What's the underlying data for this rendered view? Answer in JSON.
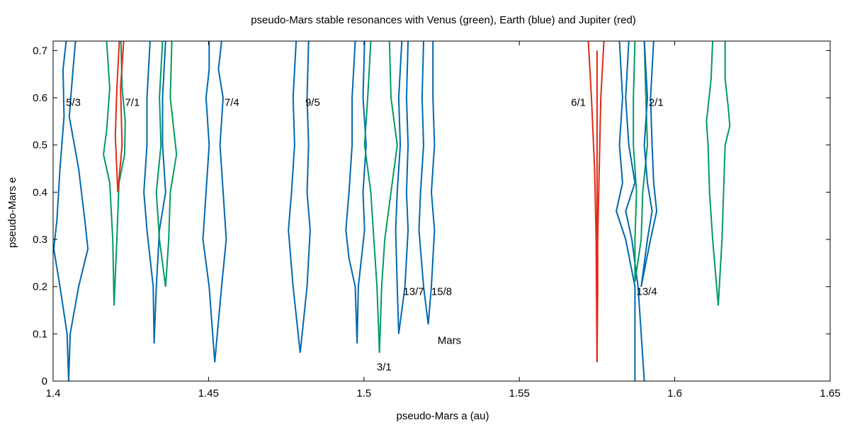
{
  "chart_data": {
    "type": "line",
    "title": "pseudo-Mars stable resonances with Venus (green), Earth (blue) and Jupiter (red)",
    "xlabel": "pseudo-Mars a (au)",
    "ylabel": "pseudo-Mars e",
    "xlim": [
      1.4,
      1.65
    ],
    "ylim": [
      0,
      0.72
    ],
    "xticks": [
      1.4,
      1.45,
      1.5,
      1.55,
      1.6,
      1.65
    ],
    "xtick_labels": [
      "1.4",
      "1.45",
      "1.5",
      "1.55",
      "1.6",
      "1.65"
    ],
    "yticks": [
      0,
      0.1,
      0.2,
      0.3,
      0.4,
      0.5,
      0.6,
      0.7
    ],
    "ytick_labels": [
      "0",
      "0.1",
      "0.2",
      "0.3",
      "0.4",
      "0.5",
      "0.6",
      "0.7"
    ],
    "grid": false,
    "colors": {
      "venus": "#009a63",
      "earth": "#0068b0",
      "jupiter": "#e02a14"
    },
    "series": [
      {
        "body": "earth",
        "points": [
          [
            1.4072,
            0.72
          ],
          [
            1.4064,
            0.66
          ],
          [
            1.4052,
            0.56
          ],
          [
            1.4082,
            0.45
          ],
          [
            1.4102,
            0.34
          ],
          [
            1.4112,
            0.28
          ],
          [
            1.4082,
            0.2
          ],
          [
            1.4055,
            0.1
          ],
          [
            1.405,
            0.0
          ]
        ]
      },
      {
        "body": "earth",
        "points": [
          [
            1.4042,
            0.72
          ],
          [
            1.4032,
            0.66
          ],
          [
            1.4035,
            0.56
          ],
          [
            1.4022,
            0.45
          ],
          [
            1.4012,
            0.34
          ],
          [
            1.4002,
            0.28
          ],
          [
            1.4022,
            0.2
          ],
          [
            1.4045,
            0.1
          ],
          [
            1.405,
            0.0
          ]
        ]
      },
      {
        "body": "venus",
        "points": [
          [
            1.4172,
            0.72
          ],
          [
            1.4182,
            0.62
          ],
          [
            1.4172,
            0.53
          ],
          [
            1.4162,
            0.48
          ],
          [
            1.4182,
            0.42
          ],
          [
            1.4192,
            0.3
          ],
          [
            1.4196,
            0.16
          ]
        ]
      },
      {
        "body": "venus",
        "points": [
          [
            1.4218,
            0.72
          ],
          [
            1.4222,
            0.62
          ],
          [
            1.4232,
            0.55
          ],
          [
            1.423,
            0.48
          ],
          [
            1.4212,
            0.42
          ],
          [
            1.4205,
            0.3
          ],
          [
            1.4196,
            0.16
          ]
        ]
      },
      {
        "body": "jupiter",
        "points": [
          [
            1.4213,
            0.72
          ],
          [
            1.4205,
            0.62
          ],
          [
            1.42,
            0.52
          ],
          [
            1.4208,
            0.4
          ]
        ]
      },
      {
        "body": "jupiter",
        "points": [
          [
            1.4227,
            0.72
          ],
          [
            1.4217,
            0.62
          ],
          [
            1.4222,
            0.5
          ],
          [
            1.4208,
            0.4
          ]
        ]
      },
      {
        "body": "earth",
        "points": [
          [
            1.4312,
            0.72
          ],
          [
            1.4302,
            0.6
          ],
          [
            1.4302,
            0.5
          ],
          [
            1.4292,
            0.4
          ],
          [
            1.4302,
            0.32
          ],
          [
            1.4322,
            0.2
          ],
          [
            1.4325,
            0.08
          ]
        ]
      },
      {
        "body": "earth",
        "points": [
          [
            1.4362,
            0.72
          ],
          [
            1.4352,
            0.6
          ],
          [
            1.4352,
            0.5
          ],
          [
            1.4362,
            0.4
          ],
          [
            1.4342,
            0.32
          ],
          [
            1.4332,
            0.2
          ],
          [
            1.4325,
            0.08
          ]
        ]
      },
      {
        "body": "venus",
        "points": [
          [
            1.4352,
            0.72
          ],
          [
            1.4342,
            0.6
          ],
          [
            1.4347,
            0.5
          ],
          [
            1.4332,
            0.4
          ],
          [
            1.4342,
            0.3
          ],
          [
            1.4362,
            0.2
          ]
        ]
      },
      {
        "body": "venus",
        "points": [
          [
            1.4382,
            0.72
          ],
          [
            1.4377,
            0.6
          ],
          [
            1.4397,
            0.48
          ],
          [
            1.4377,
            0.4
          ],
          [
            1.4372,
            0.3
          ],
          [
            1.4362,
            0.2
          ]
        ]
      },
      {
        "body": "earth",
        "points": [
          [
            1.4502,
            0.72
          ],
          [
            1.4502,
            0.66
          ],
          [
            1.4492,
            0.6
          ],
          [
            1.4502,
            0.5
          ],
          [
            1.4492,
            0.4
          ],
          [
            1.4482,
            0.3
          ],
          [
            1.4502,
            0.2
          ],
          [
            1.452,
            0.04
          ]
        ]
      },
      {
        "body": "earth",
        "points": [
          [
            1.4542,
            0.72
          ],
          [
            1.4532,
            0.66
          ],
          [
            1.4547,
            0.6
          ],
          [
            1.4537,
            0.5
          ],
          [
            1.4547,
            0.4
          ],
          [
            1.4557,
            0.3
          ],
          [
            1.4542,
            0.2
          ],
          [
            1.452,
            0.04
          ]
        ]
      },
      {
        "body": "earth",
        "points": [
          [
            1.4782,
            0.72
          ],
          [
            1.4772,
            0.6
          ],
          [
            1.4777,
            0.5
          ],
          [
            1.4767,
            0.4
          ],
          [
            1.4757,
            0.32
          ],
          [
            1.4772,
            0.2
          ],
          [
            1.4795,
            0.06
          ]
        ]
      },
      {
        "body": "earth",
        "points": [
          [
            1.4822,
            0.72
          ],
          [
            1.4817,
            0.6
          ],
          [
            1.4822,
            0.5
          ],
          [
            1.4817,
            0.4
          ],
          [
            1.4827,
            0.32
          ],
          [
            1.4817,
            0.2
          ],
          [
            1.4795,
            0.06
          ]
        ]
      },
      {
        "body": "earth",
        "points": [
          [
            1.4972,
            0.72
          ],
          [
            1.4962,
            0.6
          ],
          [
            1.4962,
            0.5
          ],
          [
            1.4952,
            0.4
          ],
          [
            1.4942,
            0.32
          ],
          [
            1.4952,
            0.26
          ],
          [
            1.4972,
            0.2
          ],
          [
            1.4978,
            0.08
          ]
        ]
      },
      {
        "body": "earth",
        "points": [
          [
            1.5002,
            0.72
          ],
          [
            1.4997,
            0.6
          ],
          [
            1.5007,
            0.5
          ],
          [
            1.4997,
            0.4
          ],
          [
            1.5002,
            0.32
          ],
          [
            1.4992,
            0.26
          ],
          [
            1.4982,
            0.2
          ],
          [
            1.4978,
            0.08
          ]
        ]
      },
      {
        "body": "venus",
        "points": [
          [
            1.5022,
            0.72
          ],
          [
            1.5012,
            0.6
          ],
          [
            1.5002,
            0.5
          ],
          [
            1.5022,
            0.4
          ],
          [
            1.5032,
            0.3
          ],
          [
            1.5042,
            0.2
          ],
          [
            1.505,
            0.06
          ]
        ]
      },
      {
        "body": "venus",
        "points": [
          [
            1.5082,
            0.72
          ],
          [
            1.5087,
            0.6
          ],
          [
            1.5107,
            0.5
          ],
          [
            1.5087,
            0.4
          ],
          [
            1.5067,
            0.3
          ],
          [
            1.5057,
            0.2
          ],
          [
            1.505,
            0.06
          ]
        ]
      },
      {
        "body": "earth",
        "points": [
          [
            1.5122,
            0.72
          ],
          [
            1.5112,
            0.6
          ],
          [
            1.5117,
            0.5
          ],
          [
            1.5107,
            0.4
          ],
          [
            1.5102,
            0.32
          ],
          [
            1.5107,
            0.2
          ],
          [
            1.5112,
            0.1
          ]
        ]
      },
      {
        "body": "earth",
        "points": [
          [
            1.5142,
            0.72
          ],
          [
            1.5137,
            0.6
          ],
          [
            1.5142,
            0.5
          ],
          [
            1.5137,
            0.4
          ],
          [
            1.5142,
            0.32
          ],
          [
            1.5132,
            0.2
          ],
          [
            1.5112,
            0.1
          ]
        ]
      },
      {
        "body": "earth",
        "points": [
          [
            1.5192,
            0.72
          ],
          [
            1.5187,
            0.6
          ],
          [
            1.5192,
            0.5
          ],
          [
            1.5182,
            0.4
          ],
          [
            1.5177,
            0.32
          ],
          [
            1.5192,
            0.2
          ],
          [
            1.5207,
            0.12
          ]
        ]
      },
      {
        "body": "earth",
        "points": [
          [
            1.5222,
            0.72
          ],
          [
            1.5222,
            0.6
          ],
          [
            1.5227,
            0.5
          ],
          [
            1.5217,
            0.4
          ],
          [
            1.5227,
            0.32
          ],
          [
            1.5217,
            0.2
          ],
          [
            1.5207,
            0.12
          ]
        ]
      },
      {
        "body": "jupiter",
        "points": [
          [
            1.5722,
            0.72
          ],
          [
            1.5732,
            0.6
          ],
          [
            1.5742,
            0.45
          ],
          [
            1.5747,
            0.3
          ],
          [
            1.5748,
            0.2
          ],
          [
            1.575,
            0.04
          ]
        ]
      },
      {
        "body": "jupiter",
        "points": [
          [
            1.5772,
            0.72
          ],
          [
            1.5762,
            0.6
          ],
          [
            1.5757,
            0.45
          ],
          [
            1.5752,
            0.3
          ],
          [
            1.5752,
            0.2
          ],
          [
            1.575,
            0.04
          ]
        ]
      },
      {
        "body": "earth",
        "points": [
          [
            1.5822,
            0.72
          ],
          [
            1.5832,
            0.6
          ],
          [
            1.5822,
            0.5
          ],
          [
            1.5832,
            0.42
          ],
          [
            1.5812,
            0.36
          ],
          [
            1.5842,
            0.3
          ],
          [
            1.5872,
            0.2
          ],
          [
            1.5872,
            0.0
          ]
        ]
      },
      {
        "body": "earth",
        "points": [
          [
            1.5852,
            0.72
          ],
          [
            1.5842,
            0.6
          ],
          [
            1.5852,
            0.5
          ],
          [
            1.5872,
            0.42
          ],
          [
            1.5842,
            0.36
          ],
          [
            1.5862,
            0.3
          ],
          [
            1.5882,
            0.2
          ],
          [
            1.5902,
            0.0
          ]
        ]
      },
      {
        "body": "venus",
        "points": [
          [
            1.5872,
            0.72
          ],
          [
            1.5867,
            0.6
          ],
          [
            1.5867,
            0.5
          ],
          [
            1.5877,
            0.4
          ],
          [
            1.5872,
            0.3
          ],
          [
            1.5872,
            0.21
          ]
        ]
      },
      {
        "body": "venus",
        "points": [
          [
            1.5902,
            0.72
          ],
          [
            1.5907,
            0.6
          ],
          [
            1.5912,
            0.5
          ],
          [
            1.5897,
            0.4
          ],
          [
            1.5892,
            0.3
          ],
          [
            1.5872,
            0.21
          ]
        ]
      },
      {
        "body": "earth",
        "points": [
          [
            1.5902,
            0.72
          ],
          [
            1.5912,
            0.6
          ],
          [
            1.5902,
            0.5
          ],
          [
            1.5912,
            0.42
          ],
          [
            1.5927,
            0.36
          ],
          [
            1.5912,
            0.3
          ],
          [
            1.5892,
            0.2
          ]
        ]
      },
      {
        "body": "earth",
        "points": [
          [
            1.5932,
            0.72
          ],
          [
            1.5922,
            0.6
          ],
          [
            1.5927,
            0.5
          ],
          [
            1.5932,
            0.42
          ],
          [
            1.5942,
            0.36
          ],
          [
            1.5922,
            0.3
          ],
          [
            1.5892,
            0.2
          ]
        ]
      },
      {
        "body": "venus",
        "points": [
          [
            1.6122,
            0.72
          ],
          [
            1.6117,
            0.64
          ],
          [
            1.6107,
            0.58
          ],
          [
            1.6102,
            0.55
          ],
          [
            1.6107,
            0.5
          ],
          [
            1.6112,
            0.4
          ],
          [
            1.6122,
            0.3
          ],
          [
            1.614,
            0.16
          ]
        ]
      },
      {
        "body": "venus",
        "points": [
          [
            1.6162,
            0.72
          ],
          [
            1.6162,
            0.64
          ],
          [
            1.6172,
            0.58
          ],
          [
            1.6177,
            0.54
          ],
          [
            1.6162,
            0.5
          ],
          [
            1.6157,
            0.4
          ],
          [
            1.6152,
            0.3
          ],
          [
            1.614,
            0.16
          ]
        ]
      },
      {
        "body": "jupiter",
        "points": [
          [
            1.575,
            0.05
          ],
          [
            1.575,
            0.7
          ]
        ]
      }
    ],
    "annotations": [
      {
        "text": "5/3",
        "x": 1.4065,
        "y": 0.59
      },
      {
        "text": "7/1",
        "x": 1.4255,
        "y": 0.59
      },
      {
        "text": "7/4",
        "x": 1.4575,
        "y": 0.59
      },
      {
        "text": "9/5",
        "x": 1.4835,
        "y": 0.59
      },
      {
        "text": "6/1",
        "x": 1.569,
        "y": 0.59
      },
      {
        "text": "2/1",
        "x": 1.594,
        "y": 0.59
      },
      {
        "text": "13/7",
        "x": 1.516,
        "y": 0.19
      },
      {
        "text": "15/8",
        "x": 1.525,
        "y": 0.19
      },
      {
        "text": "13/4",
        "x": 1.591,
        "y": 0.19
      },
      {
        "text": "Mars",
        "x": 1.5275,
        "y": 0.086
      },
      {
        "text": "3/1",
        "x": 1.5065,
        "y": 0.03
      }
    ]
  }
}
